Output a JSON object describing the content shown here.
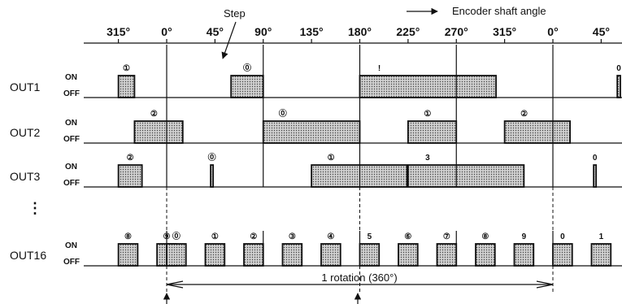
{
  "header": {
    "step_label": "Step",
    "shaft_label": "Encoder shaft angle"
  },
  "angle_ticks": [
    "315°",
    "0°",
    "45°",
    "90°",
    "135°",
    "180°",
    "225°",
    "270°",
    "315°",
    "0°",
    "45°"
  ],
  "rows": [
    {
      "name": "OUT1",
      "on": "ON",
      "off": "OFF",
      "pulses": [
        {
          "from": -45,
          "to": -30,
          "step": "①"
        },
        {
          "from": 60,
          "to": 90,
          "step": "⓪"
        },
        {
          "from": 180,
          "to": 307,
          "step": "!"
        },
        {
          "from": 420,
          "to": 440,
          "step": "0"
        }
      ]
    },
    {
      "name": "OUT2",
      "on": "ON",
      "off": "OFF",
      "pulses": [
        {
          "from": -30,
          "to": 15,
          "step": "②"
        },
        {
          "from": 90,
          "to": 180,
          "step": "⓪"
        },
        {
          "from": 225,
          "to": 270,
          "step": "①"
        },
        {
          "from": 315,
          "to": 376,
          "step": "②"
        }
      ]
    },
    {
      "name": "OUT3",
      "on": "ON",
      "off": "OFF",
      "pulses": [
        {
          "from": -45,
          "to": -23,
          "step": "②"
        },
        {
          "from": 41,
          "to": 43,
          "step": "⓪"
        },
        {
          "from": 135,
          "to": 224,
          "step": "①"
        },
        {
          "from": 225,
          "to": 333,
          "step": "3"
        },
        {
          "from": 398,
          "to": 400,
          "step": "0"
        }
      ]
    },
    {
      "name": "OUT16",
      "on": "ON",
      "off": "OFF",
      "pulses": [
        {
          "from": -45,
          "to": -27,
          "step": "⑧"
        },
        {
          "from": -9,
          "to": 9,
          "step": "⑨"
        },
        {
          "from": 0,
          "to": 18,
          "step": "⓪"
        },
        {
          "from": 36,
          "to": 54,
          "step": "①"
        },
        {
          "from": 72,
          "to": 90,
          "step": "②"
        },
        {
          "from": 108,
          "to": 126,
          "step": "③"
        },
        {
          "from": 144,
          "to": 162,
          "step": "④"
        },
        {
          "from": 180,
          "to": 198,
          "step": "5"
        },
        {
          "from": 216,
          "to": 234,
          "step": "⑥"
        },
        {
          "from": 252,
          "to": 270,
          "step": "⑦"
        },
        {
          "from": 288,
          "to": 306,
          "step": "⑧"
        },
        {
          "from": 324,
          "to": 342,
          "step": "9"
        },
        {
          "from": 360,
          "to": 378,
          "step": "0"
        },
        {
          "from": 396,
          "to": 414,
          "step": "1"
        }
      ]
    }
  ],
  "ellipsis": "⋮",
  "rotation_label": "1 rotation (360°)"
}
